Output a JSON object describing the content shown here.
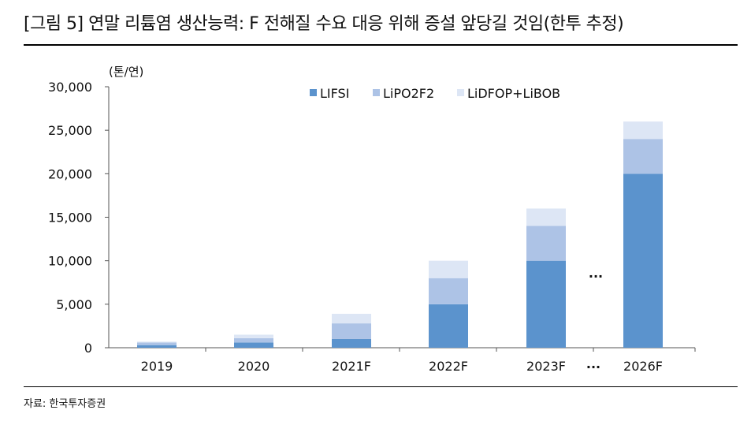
{
  "header": {
    "title": "[그림 5] 연말 리튬염 생산능력: F 전해질 수요 대응 위해 증설 앞당길 것임(한투 추정)"
  },
  "footer": {
    "source": "자료: 한국투자증권"
  },
  "chart_data": {
    "type": "bar",
    "stacked": true,
    "unit_label": "(톤/연)",
    "categories": [
      "2019",
      "2020",
      "2021F",
      "2022F",
      "2023F",
      "2026F"
    ],
    "break_label": "...",
    "series": [
      {
        "name": "LIFSI",
        "color": "#5b93cd",
        "values": [
          300,
          600,
          1000,
          5000,
          10000,
          20000
        ]
      },
      {
        "name": "LiPO2F2",
        "color": "#adc3e6",
        "values": [
          300,
          500,
          1800,
          3000,
          4000,
          4000
        ]
      },
      {
        "name": "LiDFOP+LiBOB",
        "color": "#dde6f5",
        "values": [
          100,
          400,
          1100,
          2000,
          2000,
          2000
        ]
      }
    ],
    "ylim": [
      0,
      30000
    ],
    "yticks": [
      "0",
      "5,000",
      "10,000",
      "15,000",
      "20,000",
      "25,000",
      "30,000"
    ],
    "legend_position": "top-right",
    "grid": false
  }
}
